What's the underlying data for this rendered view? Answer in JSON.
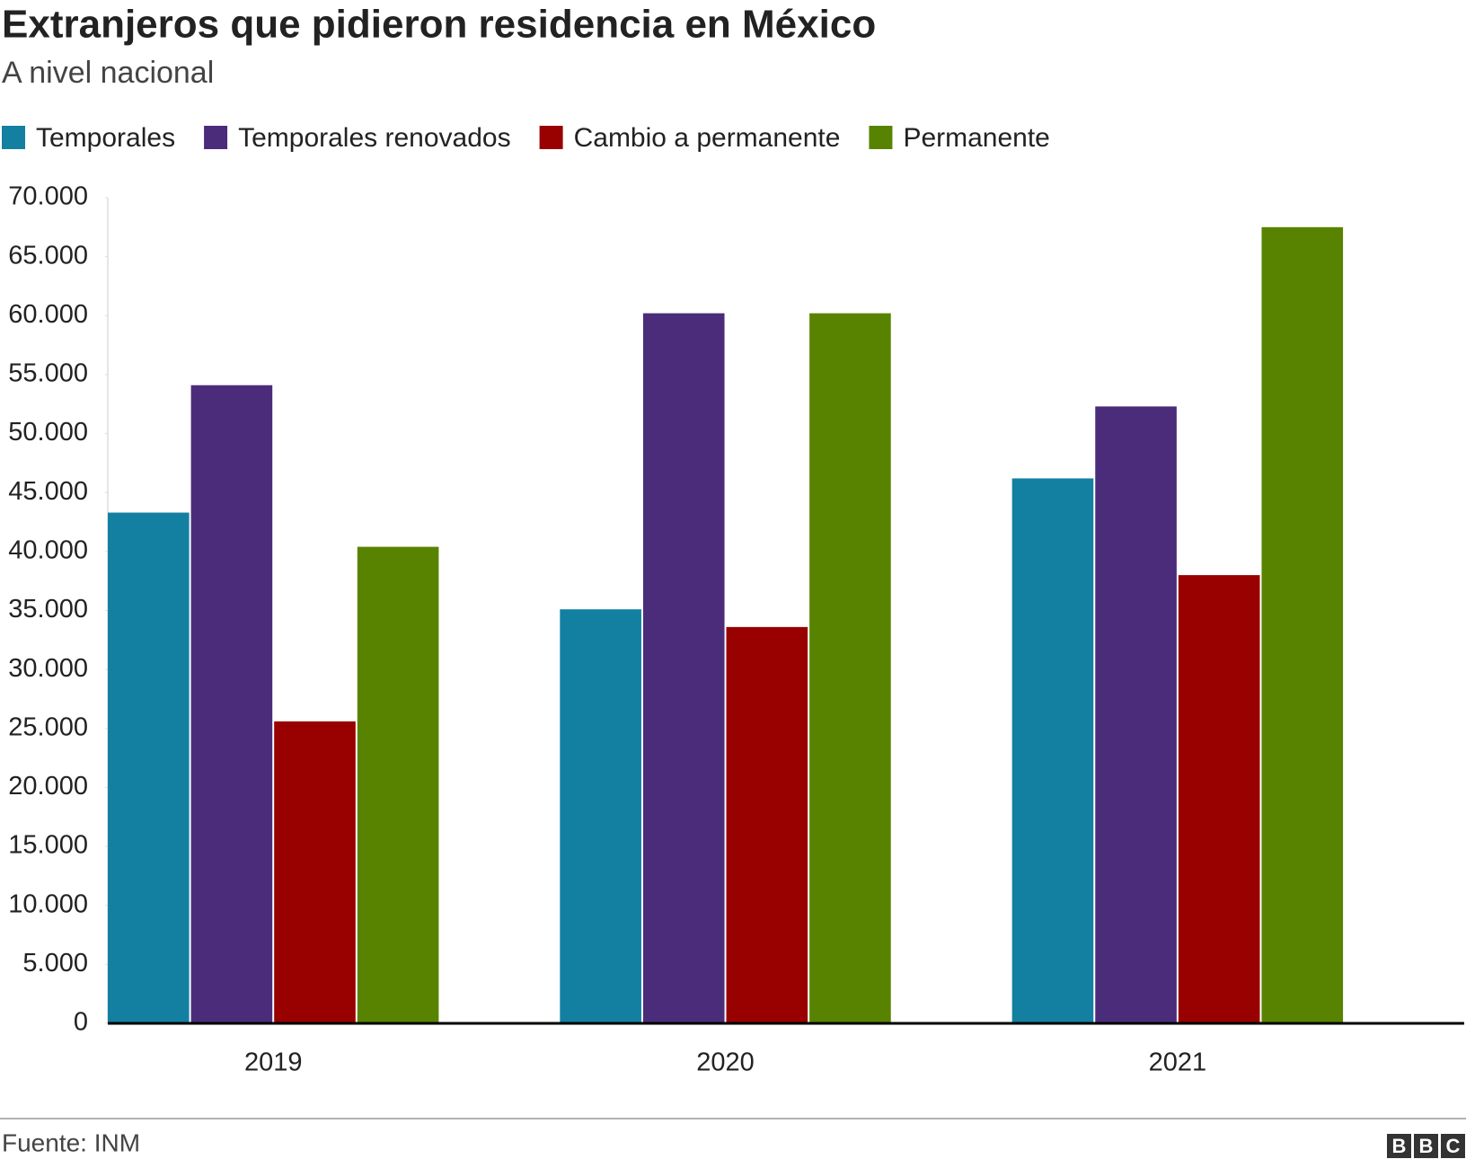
{
  "chart_data": {
    "type": "bar",
    "title": "Extranjeros que pidieron residencia en México",
    "subtitle": "A nivel nacional",
    "source": "Fuente: INM",
    "logo": [
      "B",
      "B",
      "C"
    ],
    "categories": [
      "2019",
      "2020",
      "2021"
    ],
    "series": [
      {
        "name": "Temporales",
        "color": "#1380a1",
        "values": [
          43300,
          35100,
          46200
        ]
      },
      {
        "name": "Temporales renovados",
        "color": "#4b2c7a",
        "values": [
          54100,
          60200,
          52300
        ]
      },
      {
        "name": "Cambio a permanente",
        "color": "#990000",
        "values": [
          25600,
          33600,
          38000
        ]
      },
      {
        "name": "Permanente",
        "color": "#588300",
        "values": [
          40400,
          60200,
          67500
        ]
      }
    ],
    "ylim": [
      0,
      70000
    ],
    "yticks": [
      0,
      {
        "value": 5000,
        "label": "5.000"
      },
      {
        "value": 10000,
        "label": "10.000"
      },
      {
        "value": 15000,
        "label": "15.000"
      },
      {
        "value": 20000,
        "label": "20.000"
      },
      {
        "value": 25000,
        "label": "25.000"
      },
      {
        "value": 30000,
        "label": "30.000"
      },
      {
        "value": 35000,
        "label": "35.000"
      },
      {
        "value": 40000,
        "label": "40.000"
      },
      {
        "value": 45000,
        "label": "45.000"
      },
      {
        "value": 50000,
        "label": "50.000"
      },
      {
        "value": 55000,
        "label": "55.000"
      },
      {
        "value": 60000,
        "label": "60.000"
      },
      {
        "value": 65000,
        "label": "65.000"
      },
      {
        "value": 70000,
        "label": "70.000"
      }
    ],
    "grid": false
  }
}
